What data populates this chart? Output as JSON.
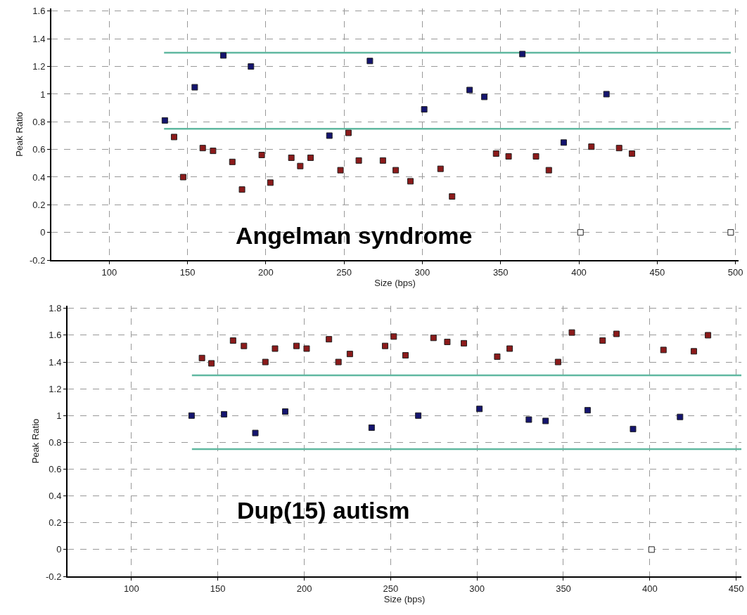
{
  "chart_data": [
    {
      "type": "scatter",
      "xlabel": "Size (bps)",
      "ylabel": "Peak Ratio",
      "annotations": [
        "Angelman syndrome"
      ],
      "xlim": [
        63,
        502
      ],
      "xticks": [
        100,
        150,
        200,
        250,
        300,
        350,
        400,
        450,
        500
      ],
      "ylim": [
        -0.2,
        1.62
      ],
      "yticks": [
        -0.2,
        0,
        0.2,
        0.4,
        0.6,
        0.8,
        1,
        1.2,
        1.4,
        1.6
      ],
      "grid": true,
      "marker": "square",
      "series": [
        {
          "type": "line",
          "marker": "none",
          "color": "#5fb8a0",
          "x": [
            135,
            497
          ],
          "values": [
            1.3,
            1.3
          ]
        },
        {
          "type": "line",
          "marker": "none",
          "color": "#5fb8a0",
          "x": [
            135,
            497
          ],
          "values": [
            0.75,
            0.75
          ]
        },
        {
          "color": "#14146e",
          "x": [
            135.5,
            154.6,
            172.9,
            190.5,
            240.6,
            266.5,
            301.2,
            330.2,
            339.6,
            363.9,
            390.3,
            417.6
          ],
          "values": [
            0.81,
            1.05,
            1.28,
            1.2,
            0.7,
            1.24,
            0.89,
            1.03,
            0.98,
            1.29,
            0.65,
            1
          ]
        },
        {
          "color": "#8b1a1a",
          "x": [
            141.4,
            147.2,
            159.7,
            166.3,
            178.6,
            184.8,
            197.4,
            202.9,
            216.3,
            222,
            228.6,
            247.7,
            252.8,
            259.4,
            274.8,
            283,
            292.4,
            311.6,
            319,
            347.1,
            355.1,
            372.6,
            380.8,
            408,
            425.7,
            433.9
          ],
          "values": [
            0.69,
            0.4,
            0.61,
            0.59,
            0.51,
            0.31,
            0.56,
            0.36,
            0.54,
            0.48,
            0.54,
            0.45,
            0.72,
            0.52,
            0.52,
            0.45,
            0.37,
            0.46,
            0.26,
            0.57,
            0.55,
            0.55,
            0.45,
            0.62,
            0.61,
            0.57
          ]
        },
        {
          "color": "#ffffff",
          "x": [
            401,
            497
          ],
          "values": [
            0,
            0
          ]
        }
      ]
    },
    {
      "type": "scatter",
      "xlabel": "Size (bps)",
      "ylabel": "Peak Ratio",
      "annotations": [
        "Dup(15) autism"
      ],
      "xlim": [
        63,
        453
      ],
      "xticks": [
        100,
        150,
        200,
        250,
        300,
        350,
        400,
        450
      ],
      "ylim": [
        -0.2,
        1.82
      ],
      "yticks": [
        -0.2,
        0,
        0.2,
        0.4,
        0.6,
        0.8,
        1,
        1.2,
        1.4,
        1.6,
        1.8
      ],
      "grid": true,
      "marker": "square",
      "series": [
        {
          "type": "line",
          "marker": "none",
          "color": "#5fb8a0",
          "x": [
            135,
            453
          ],
          "values": [
            1.3,
            1.3
          ]
        },
        {
          "type": "line",
          "marker": "none",
          "color": "#5fb8a0",
          "x": [
            135,
            453
          ],
          "values": [
            0.75,
            0.75
          ]
        },
        {
          "color": "#14146e",
          "x": [
            134.8,
            153.6,
            171.7,
            189,
            239,
            266,
            301.4,
            330,
            339.7,
            364,
            390.3,
            417.5
          ],
          "values": [
            1,
            1.01,
            0.87,
            1.03,
            0.91,
            1,
            1.05,
            0.97,
            0.96,
            1.04,
            0.9,
            0.99
          ]
        },
        {
          "color": "#8b1a1a",
          "x": [
            140.8,
            146.3,
            158.8,
            165.1,
            177.5,
            183.1,
            195.5,
            201.4,
            214.3,
            219.8,
            226.4,
            246.8,
            251.8,
            258.6,
            274.8,
            282.8,
            292.4,
            311.7,
            318.9,
            346.9,
            354.9,
            372.7,
            380.7,
            407.9,
            425.5,
            433.7
          ],
          "values": [
            1.43,
            1.39,
            1.56,
            1.52,
            1.4,
            1.5,
            1.52,
            1.5,
            1.57,
            1.4,
            1.46,
            1.52,
            1.59,
            1.45,
            1.58,
            1.55,
            1.54,
            1.44,
            1.5,
            1.4,
            1.62,
            1.56,
            1.61,
            1.49,
            1.48,
            1.6
          ]
        },
        {
          "color": "#ffffff",
          "x": [
            401
          ],
          "values": [
            0
          ]
        }
      ]
    }
  ]
}
